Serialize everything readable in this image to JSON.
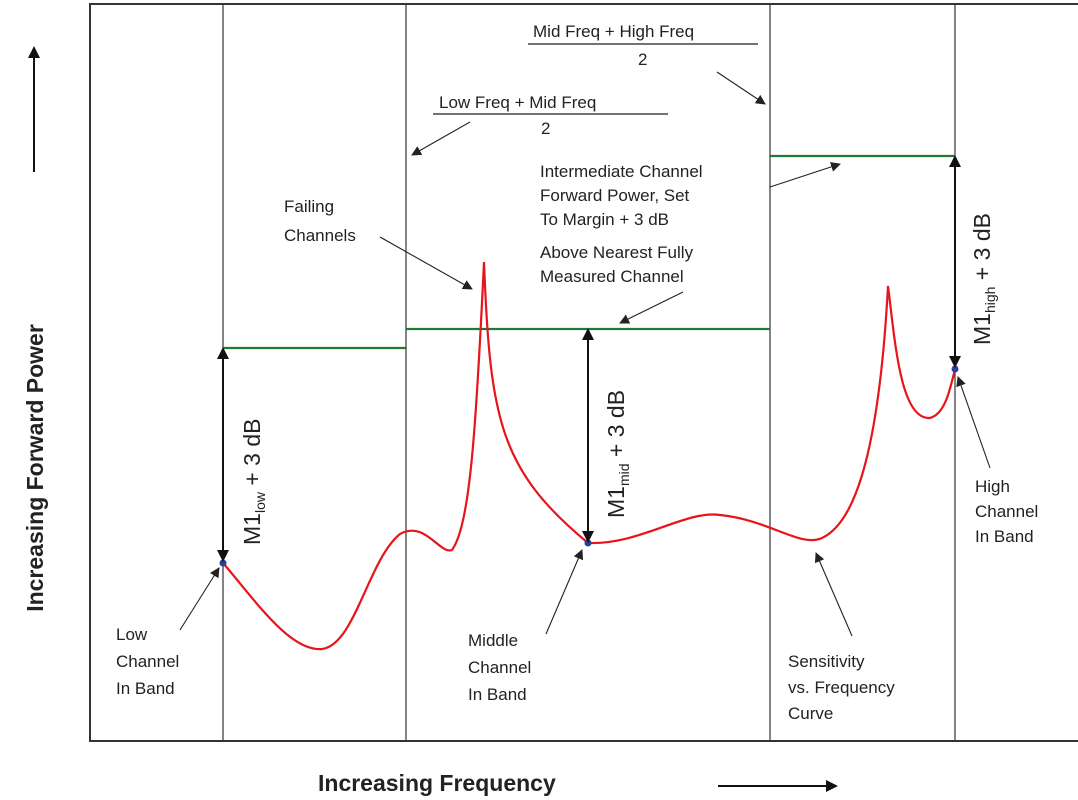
{
  "axes": {
    "y_label": "Increasing Forward Power",
    "x_label": "Increasing Frequency"
  },
  "formulas": {
    "mid_high": {
      "numerator": "Mid Freq + High Freq",
      "denominator": "2"
    },
    "low_mid": {
      "numerator": "Low Freq + Mid Freq",
      "denominator": "2"
    }
  },
  "notes": {
    "intermediate": [
      "Intermediate Channel",
      "Forward Power, Set",
      "To Margin + 3 dB",
      "Above Nearest Fully",
      "Measured Channel"
    ],
    "failing": [
      "Failing",
      "Channels"
    ],
    "low_channel": [
      "Low",
      "Channel",
      "In Band"
    ],
    "middle_channel": [
      "Middle",
      "Channel",
      "In Band"
    ],
    "high_channel": [
      "High",
      "Channel",
      "In Band"
    ],
    "curve": [
      "Sensitivity",
      "vs. Frequency",
      "Curve"
    ]
  },
  "margins": {
    "low": {
      "base": "M1",
      "sub": "low",
      "suffix": " + 3 dB"
    },
    "mid": {
      "base": "M1",
      "sub": "mid",
      "suffix": " + 3 dB"
    },
    "high": {
      "base": "M1",
      "sub": "high",
      "suffix": " + 3 dB"
    }
  },
  "colors": {
    "curve": "#e8141b",
    "level": "#1e7a35",
    "point": "#2a3f9c",
    "line": "#333333"
  }
}
